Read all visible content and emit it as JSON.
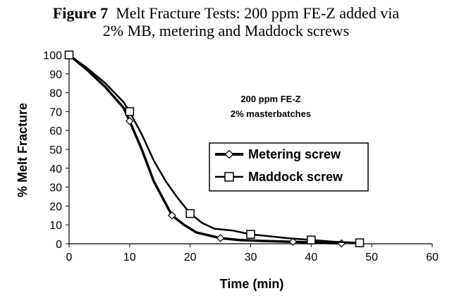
{
  "figure": {
    "label": "Figure 7",
    "title_line1": "Melt Fracture Tests:  200 ppm FE-Z added via",
    "title_line2": "2% MB, metering and Maddock screws"
  },
  "chart_data": {
    "type": "line",
    "xlabel": "Time (min)",
    "ylabel": "% Melt Fracture",
    "xlim": [
      0,
      60
    ],
    "ylim": [
      0,
      100
    ],
    "x_ticks": [
      0,
      10,
      20,
      30,
      40,
      50,
      60
    ],
    "y_ticks": [
      0,
      10,
      20,
      30,
      40,
      50,
      60,
      70,
      80,
      90,
      100
    ],
    "grid": false,
    "legend_position": "center-right",
    "annotation_line1": "200 ppm FE-Z",
    "annotation_line2": "2% masterbatches",
    "series": [
      {
        "name": "Metering screw",
        "marker": "diamond",
        "color": "#000000",
        "curve": [
          [
            0,
            100
          ],
          [
            3,
            92
          ],
          [
            6,
            83
          ],
          [
            9,
            72
          ],
          [
            10,
            65
          ],
          [
            12,
            50
          ],
          [
            14,
            33
          ],
          [
            16,
            21
          ],
          [
            17,
            15
          ],
          [
            19,
            10
          ],
          [
            21,
            6
          ],
          [
            23,
            4.5
          ],
          [
            25,
            3
          ],
          [
            28,
            2
          ],
          [
            32,
            1.5
          ],
          [
            37,
            1
          ],
          [
            41,
            0.6
          ],
          [
            45,
            0.2
          ]
        ],
        "points": [
          [
            0,
            100
          ],
          [
            10,
            65
          ],
          [
            17,
            15
          ],
          [
            25,
            3
          ],
          [
            37,
            1
          ],
          [
            45,
            0.2
          ]
        ]
      },
      {
        "name": "Maddock screw",
        "marker": "square",
        "color": "#000000",
        "curve": [
          [
            0,
            100
          ],
          [
            3,
            93
          ],
          [
            6,
            85
          ],
          [
            9,
            75
          ],
          [
            10,
            70
          ],
          [
            12,
            58
          ],
          [
            14,
            44
          ],
          [
            16,
            33
          ],
          [
            18,
            24
          ],
          [
            20,
            16
          ],
          [
            22,
            11
          ],
          [
            24,
            8
          ],
          [
            27,
            7
          ],
          [
            30,
            5
          ],
          [
            33,
            4
          ],
          [
            36,
            3
          ],
          [
            40,
            2
          ],
          [
            44,
            1
          ],
          [
            48,
            0.5
          ]
        ],
        "points": [
          [
            0,
            100
          ],
          [
            10,
            70
          ],
          [
            20,
            16
          ],
          [
            30,
            5
          ],
          [
            40,
            2
          ],
          [
            48,
            0.5
          ]
        ]
      }
    ]
  }
}
